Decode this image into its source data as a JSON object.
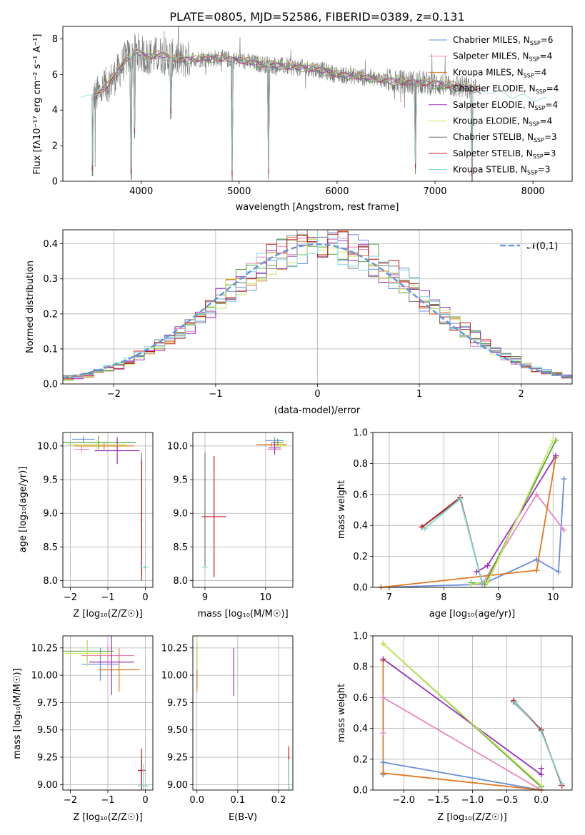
{
  "title": "PLATE=0805, MJD=52586, FIBERID=0389, z=0.131",
  "colors": {
    "chabrier_miles": "#6a8fd8",
    "salpeter_miles": "#e885c0",
    "kroupa_miles": "#e07820",
    "chabrier_elodie": "#58a040",
    "salpeter_elodie": "#9a30b8",
    "kroupa_elodie": "#c8e860",
    "chabrier_stelib": "#777777",
    "salpeter_stelib": "#c01818",
    "kroupa_stelib": "#7ed8d8",
    "normal_curve": "#6495dd"
  },
  "chart_data": [
    {
      "id": "spectrum",
      "type": "line",
      "xlabel": "wavelength [Angstrom, rest frame]",
      "ylabel": "Flux [fλ10⁻¹⁷ erg cm⁻² s⁻¹ A⁻¹]",
      "xlim": [
        3200,
        8400
      ],
      "ylim": [
        0,
        8.7
      ],
      "xticks": [
        4000,
        5000,
        6000,
        7000,
        8000
      ],
      "yticks": [
        0,
        2,
        4,
        6,
        8
      ],
      "legend_position": "top-right",
      "series": [
        {
          "name": "Chabrier MILES, N_SSP=6",
          "label_main": "Chabrier MILES, N",
          "label_sub": "SSP",
          "label_tail": "=6",
          "color_key": "chabrier_miles"
        },
        {
          "name": "Salpeter MILES, N_SSP=4",
          "label_main": "Salpeter MILES, N",
          "label_sub": "SSP",
          "label_tail": "=4",
          "color_key": "salpeter_miles"
        },
        {
          "name": "Kroupa MILES, N_SSP=4",
          "label_main": "Kroupa MILES, N",
          "label_sub": "SSP",
          "label_tail": "=4",
          "color_key": "kroupa_miles"
        },
        {
          "name": "Chabrier ELODIE, N_SSP=4",
          "label_main": "Chabrier ELODIE, N",
          "label_sub": "SSP",
          "label_tail": "=4",
          "color_key": "chabrier_elodie"
        },
        {
          "name": "Salpeter ELODIE, N_SSP=4",
          "label_main": "Salpeter ELODIE, N",
          "label_sub": "SSP",
          "label_tail": "=4",
          "color_key": "salpeter_elodie"
        },
        {
          "name": "Kroupa ELODIE, N_SSP=4",
          "label_main": "Kroupa ELODIE, N",
          "label_sub": "SSP",
          "label_tail": "=4",
          "color_key": "kroupa_elodie"
        },
        {
          "name": "Chabrier STELIB, N_SSP=3",
          "label_main": "Chabrier STELIB, N",
          "label_sub": "SSP",
          "label_tail": "=3",
          "color_key": "chabrier_stelib"
        },
        {
          "name": "Salpeter STELIB, N_SSP=3",
          "label_main": "Salpeter STELIB, N",
          "label_sub": "SSP",
          "label_tail": "=3",
          "color_key": "salpeter_stelib"
        },
        {
          "name": "Kroupa STELIB, N_SSP=3",
          "label_main": "Kroupa STELIB, N",
          "label_sub": "SSP",
          "label_tail": "=3",
          "color_key": "kroupa_stelib"
        }
      ],
      "model_continuum": [
        [
          3380,
          4.8
        ],
        [
          3500,
          4.6
        ],
        [
          3600,
          5.1
        ],
        [
          3750,
          6.0
        ],
        [
          3850,
          6.9
        ],
        [
          3950,
          7.3
        ],
        [
          4050,
          7.0
        ],
        [
          4200,
          7.1
        ],
        [
          4400,
          6.8
        ],
        [
          4600,
          6.9
        ],
        [
          4800,
          6.9
        ],
        [
          5000,
          6.8
        ],
        [
          5200,
          6.6
        ],
        [
          5400,
          6.5
        ],
        [
          5600,
          6.4
        ],
        [
          5800,
          6.3
        ],
        [
          6000,
          6.0
        ],
        [
          6200,
          5.9
        ],
        [
          6400,
          5.75
        ],
        [
          6600,
          5.6
        ],
        [
          6800,
          5.55
        ],
        [
          7000,
          5.5
        ],
        [
          7200,
          5.35
        ],
        [
          7400,
          5.15
        ],
        [
          7600,
          4.95
        ],
        [
          7800,
          4.75
        ],
        [
          8000,
          4.6
        ],
        [
          8150,
          4.5
        ]
      ],
      "data_start_wavelength": 3500,
      "data_end_wavelength": 7420,
      "absorption_dips": [
        [
          3505,
          0.3
        ],
        [
          3530,
          0.8
        ],
        [
          3900,
          0.1
        ],
        [
          3935,
          2.4
        ],
        [
          4300,
          3.5
        ],
        [
          4930,
          0.0
        ],
        [
          5300,
          0.1
        ],
        [
          6800,
          0.4
        ],
        [
          7380,
          0.0
        ]
      ]
    },
    {
      "id": "residual_distribution",
      "type": "histogram",
      "xlabel": "(data-model)/error",
      "ylabel": "Normed distribution",
      "xlim": [
        -2.5,
        2.5
      ],
      "ylim": [
        0,
        0.44
      ],
      "xticks": [
        -2,
        -1,
        0,
        1,
        2
      ],
      "yticks": [
        0.0,
        0.1,
        0.2,
        0.3,
        0.4
      ],
      "grid": true,
      "legend_position": "top-right",
      "reference_curve": {
        "label": "𝒩(0,1)",
        "mean": 0,
        "sigma": 1
      },
      "bin_width": 0.1,
      "reference_values": [
        0.017,
        0.022,
        0.028,
        0.036,
        0.044,
        0.054,
        0.066,
        0.079,
        0.094,
        0.111,
        0.13,
        0.15,
        0.171,
        0.194,
        0.218,
        0.242,
        0.266,
        0.29,
        0.312,
        0.333,
        0.352,
        0.368,
        0.381,
        0.391,
        0.397,
        0.399,
        0.397,
        0.391,
        0.381,
        0.368,
        0.352,
        0.333,
        0.312,
        0.29,
        0.266,
        0.242,
        0.218,
        0.194,
        0.171,
        0.15,
        0.13,
        0.111,
        0.094,
        0.079,
        0.066,
        0.054,
        0.044,
        0.036,
        0.028,
        0.022
      ]
    },
    {
      "id": "age_vs_Z",
      "type": "scatter",
      "xlabel": "Z [log₁₀(Z/Z☉)]",
      "ylabel": "age  [log₁₀(age/yr)]",
      "xlim": [
        -2.2,
        0.2
      ],
      "ylim": [
        7.9,
        10.2
      ],
      "xticks": [
        -2,
        -1,
        0
      ],
      "yticks": [
        8.0,
        8.5,
        9.0,
        9.5,
        10.0
      ],
      "grid": true,
      "points": [
        {
          "color_key": "chabrier_miles",
          "x": -1.65,
          "y": 10.1,
          "xerr": 0.3,
          "yerr": 0.05
        },
        {
          "color_key": "salpeter_miles",
          "x": -1.7,
          "y": 9.95,
          "xerr": 0.2,
          "yerr": 0.05
        },
        {
          "color_key": "kroupa_miles",
          "x": -1.1,
          "y": 10.0,
          "xerr": 0.8,
          "yerr": 0.05
        },
        {
          "color_key": "chabrier_elodie",
          "x": -1.25,
          "y": 10.05,
          "xerr": 1.0,
          "yerr": 0.1
        },
        {
          "color_key": "salpeter_elodie",
          "x": -0.75,
          "y": 9.93,
          "xerr": 0.6,
          "yerr": 0.2
        },
        {
          "color_key": "kroupa_elodie",
          "x": -1.3,
          "y": 10.02,
          "xerr": 0.8,
          "yerr": 0.07
        },
        {
          "color_key": "chabrier_stelib",
          "x": -0.1,
          "y": 9.0,
          "xerr": 0.02,
          "yerr": 0.9
        },
        {
          "color_key": "salpeter_stelib",
          "x": -0.1,
          "y": 8.9,
          "xerr": 0.02,
          "yerr": 0.9
        },
        {
          "color_key": "kroupa_stelib",
          "x": -0.02,
          "y": 8.2,
          "xerr": 0.12,
          "yerr": 0.02
        }
      ]
    },
    {
      "id": "age_vs_mass",
      "type": "scatter",
      "xlabel": "mass [log₁₀(M/M☉)]",
      "ylabel": "",
      "xlim": [
        8.8,
        10.45
      ],
      "ylim": [
        7.9,
        10.2
      ],
      "xticks": [
        9,
        10
      ],
      "yticks": [
        8.0,
        8.5,
        9.0,
        9.5,
        10.0
      ],
      "grid": true,
      "points": [
        {
          "color_key": "chabrier_miles",
          "x": 10.15,
          "y": 10.08,
          "xerr": 0.15,
          "yerr": 0.05
        },
        {
          "color_key": "salpeter_miles",
          "x": 10.15,
          "y": 9.95,
          "xerr": 0.12,
          "yerr": 0.05
        },
        {
          "color_key": "kroupa_miles",
          "x": 10.1,
          "y": 10.02,
          "xerr": 0.25,
          "yerr": 0.03
        },
        {
          "color_key": "chabrier_elodie",
          "x": 10.2,
          "y": 10.05,
          "xerr": 0.1,
          "yerr": 0.06
        },
        {
          "color_key": "salpeter_elodie",
          "x": 10.15,
          "y": 9.97,
          "xerr": 0.1,
          "yerr": 0.1
        },
        {
          "color_key": "kroupa_elodie",
          "x": 10.25,
          "y": 10.0,
          "xerr": 0.08,
          "yerr": 0.06
        },
        {
          "color_key": "chabrier_stelib",
          "x": 9.0,
          "y": 9.05,
          "xerr": 0.01,
          "yerr": 0.85
        },
        {
          "color_key": "salpeter_stelib",
          "x": 9.15,
          "y": 8.95,
          "xerr": 0.2,
          "yerr": 0.9
        },
        {
          "color_key": "kroupa_stelib",
          "x": 9.0,
          "y": 8.2,
          "xerr": 0.05,
          "yerr": 0.02
        }
      ]
    },
    {
      "id": "weight_vs_age",
      "type": "line",
      "xlabel": "age  [log₁₀(age/yr)]",
      "ylabel": "mass weight",
      "xlim": [
        6.7,
        10.35
      ],
      "ylim": [
        0,
        1.0
      ],
      "xticks": [
        7,
        8,
        9,
        10
      ],
      "yticks": [
        0.0,
        0.2,
        0.4,
        0.6,
        0.8,
        1.0
      ],
      "grid": true,
      "series": [
        {
          "color_key": "chabrier_miles",
          "points": [
            [
              6.85,
              0.0
            ],
            [
              8.7,
              0.02
            ],
            [
              9.7,
              0.18
            ],
            [
              10.1,
              0.1
            ],
            [
              10.2,
              0.7
            ]
          ]
        },
        {
          "color_key": "salpeter_miles",
          "points": [
            [
              8.7,
              0.02
            ],
            [
              9.7,
              0.6
            ],
            [
              10.2,
              0.37
            ]
          ]
        },
        {
          "color_key": "kroupa_miles",
          "points": [
            [
              6.85,
              0.0
            ],
            [
              9.7,
              0.11
            ],
            [
              10.05,
              0.84
            ]
          ]
        },
        {
          "color_key": "chabrier_elodie",
          "points": [
            [
              8.5,
              0.03
            ],
            [
              8.75,
              0.02
            ],
            [
              10.05,
              0.95
            ]
          ]
        },
        {
          "color_key": "salpeter_elodie",
          "points": [
            [
              8.6,
              0.1
            ],
            [
              8.8,
              0.14
            ],
            [
              10.05,
              0.85
            ]
          ]
        },
        {
          "color_key": "kroupa_elodie",
          "points": [
            [
              8.5,
              0.02
            ],
            [
              8.8,
              0.03
            ],
            [
              10.0,
              0.95
            ]
          ]
        },
        {
          "color_key": "chabrier_stelib",
          "points": [
            [
              7.6,
              0.39
            ],
            [
              8.3,
              0.57
            ],
            [
              8.7,
              0.03
            ]
          ]
        },
        {
          "color_key": "salpeter_stelib",
          "points": [
            [
              7.6,
              0.39
            ],
            [
              8.3,
              0.58
            ],
            [
              8.7,
              0.03
            ]
          ]
        },
        {
          "color_key": "kroupa_stelib",
          "points": [
            [
              7.65,
              0.38
            ],
            [
              8.3,
              0.57
            ],
            [
              8.7,
              0.03
            ]
          ]
        }
      ]
    },
    {
      "id": "mass_vs_Z",
      "type": "scatter",
      "xlabel": "Z [log₁₀(Z/Z☉)]",
      "ylabel": "mass [log₁₀(M/M☉)]",
      "xlim": [
        -2.2,
        0.2
      ],
      "ylim": [
        8.95,
        10.36
      ],
      "xticks": [
        -2,
        -1,
        0
      ],
      "yticks": [
        9.0,
        9.25,
        9.5,
        9.75,
        10.0,
        10.25
      ],
      "grid": true,
      "points": [
        {
          "color_key": "chabrier_miles",
          "x": -1.2,
          "y": 10.1,
          "xerr": 0.5,
          "yerr": 0.15
        },
        {
          "color_key": "salpeter_miles",
          "x": -1.0,
          "y": 10.18,
          "xerr": 0.7,
          "yerr": 0.1
        },
        {
          "color_key": "kroupa_miles",
          "x": -0.7,
          "y": 10.05,
          "xerr": 0.55,
          "yerr": 0.2
        },
        {
          "color_key": "chabrier_elodie",
          "x": -1.55,
          "y": 10.22,
          "xerr": 0.7,
          "yerr": 0.1
        },
        {
          "color_key": "salpeter_elodie",
          "x": -0.9,
          "y": 10.12,
          "xerr": 0.6,
          "yerr": 0.3
        },
        {
          "color_key": "kroupa_elodie",
          "x": -1.55,
          "y": 10.2,
          "xerr": 0.6,
          "yerr": 0.12
        },
        {
          "color_key": "chabrier_stelib",
          "x": -0.1,
          "y": 9.0,
          "xerr": 0.01,
          "yerr": 0.2
        },
        {
          "color_key": "salpeter_stelib",
          "x": -0.1,
          "y": 9.13,
          "xerr": 0.1,
          "yerr": 0.2
        },
        {
          "color_key": "kroupa_stelib",
          "x": -0.05,
          "y": 8.99,
          "xerr": 0.15,
          "yerr": 0.2
        }
      ]
    },
    {
      "id": "mass_vs_ebv",
      "type": "scatter",
      "xlabel": "E(B-V)",
      "ylabel": "",
      "xlim": [
        -0.01,
        0.235
      ],
      "ylim": [
        8.95,
        10.36
      ],
      "xticks": [
        0.0,
        0.1,
        0.2
      ],
      "yticks": [
        9.0,
        9.25,
        9.5,
        9.75,
        10.0,
        10.25
      ],
      "grid": true,
      "points": [
        {
          "color_key": "chabrier_miles",
          "x": 0.0,
          "y": 10.05,
          "xerr": 0.0,
          "yerr": 0.15
        },
        {
          "color_key": "salpeter_miles",
          "x": 0.0,
          "y": 10.15,
          "xerr": 0.0,
          "yerr": 0.1
        },
        {
          "color_key": "kroupa_miles",
          "x": 0.0,
          "y": 10.05,
          "xerr": 0.0,
          "yerr": 0.2
        },
        {
          "color_key": "chabrier_elodie",
          "x": 0.0,
          "y": 10.2,
          "xerr": 0.0,
          "yerr": 0.1
        },
        {
          "color_key": "salpeter_elodie",
          "x": 0.09,
          "y": 10.03,
          "xerr": 0.0,
          "yerr": 0.22
        },
        {
          "color_key": "kroupa_elodie",
          "x": 0.0,
          "y": 10.2,
          "xerr": 0.0,
          "yerr": 0.15
        },
        {
          "color_key": "chabrier_stelib",
          "x": 0.225,
          "y": 9.1,
          "xerr": 0.0,
          "yerr": 0.15
        },
        {
          "color_key": "salpeter_stelib",
          "x": 0.225,
          "y": 9.2,
          "xerr": 0.0,
          "yerr": 0.15
        },
        {
          "color_key": "kroupa_stelib",
          "x": 0.225,
          "y": 9.05,
          "xerr": 0.0,
          "yerr": 0.18
        }
      ]
    },
    {
      "id": "weight_vs_Z",
      "type": "line",
      "xlabel": "Z [log₁₀(Z/Z☉)]",
      "ylabel": "mass weight",
      "xlim": [
        -2.45,
        0.45
      ],
      "ylim": [
        0,
        1.0
      ],
      "xticks": [
        -2.0,
        -1.5,
        -1.0,
        -0.5,
        0.0
      ],
      "yticks": [
        0.0,
        0.2,
        0.4,
        0.6,
        0.8,
        1.0
      ],
      "grid": true,
      "series": [
        {
          "color_key": "chabrier_miles",
          "points": [
            [
              -2.3,
              0.1
            ],
            [
              -2.3,
              0.18
            ],
            [
              0.0,
              0.0
            ]
          ]
        },
        {
          "color_key": "salpeter_miles",
          "points": [
            [
              -2.3,
              0.37
            ],
            [
              -2.3,
              0.6
            ],
            [
              0.0,
              0.0
            ]
          ]
        },
        {
          "color_key": "kroupa_miles",
          "points": [
            [
              -2.3,
              0.84
            ],
            [
              -2.3,
              0.11
            ],
            [
              0.0,
              0.0
            ]
          ]
        },
        {
          "color_key": "chabrier_elodie",
          "points": [
            [
              -2.3,
              0.95
            ],
            [
              0.0,
              0.02
            ]
          ]
        },
        {
          "color_key": "salpeter_elodie",
          "points": [
            [
              -2.3,
              0.85
            ],
            [
              0.0,
              0.1
            ],
            [
              0.0,
              0.14
            ]
          ]
        },
        {
          "color_key": "kroupa_elodie",
          "points": [
            [
              -2.3,
              0.95
            ],
            [
              0.0,
              0.03
            ]
          ]
        },
        {
          "color_key": "chabrier_stelib",
          "points": [
            [
              -0.4,
              0.57
            ],
            [
              0.0,
              0.39
            ],
            [
              0.3,
              0.03
            ]
          ]
        },
        {
          "color_key": "salpeter_stelib",
          "points": [
            [
              -0.4,
              0.58
            ],
            [
              0.0,
              0.39
            ],
            [
              0.3,
              0.03
            ]
          ]
        },
        {
          "color_key": "kroupa_stelib",
          "points": [
            [
              -0.38,
              0.57
            ],
            [
              0.0,
              0.38
            ],
            [
              0.3,
              0.04
            ]
          ]
        }
      ]
    }
  ]
}
